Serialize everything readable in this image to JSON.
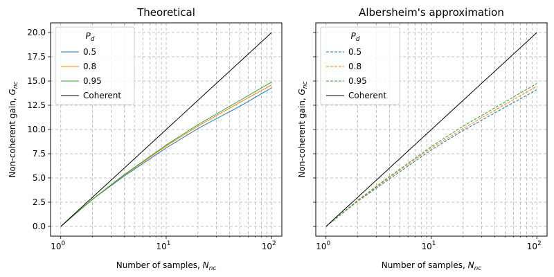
{
  "figure_title": "",
  "chart_data": [
    {
      "type": "line",
      "title": "Theoretical",
      "xlabel": "Number of samples, N_nc",
      "ylabel": "Non-coherent gain, G_nc",
      "xscale": "log",
      "xlim": [
        0.8,
        125
      ],
      "ylim": [
        -1.0,
        21.0
      ],
      "x_tick_labels": [
        "10^0",
        "10^1",
        "10^2"
      ],
      "y_ticks": [
        "0.0",
        "2.5",
        "5.0",
        "7.5",
        "10.0",
        "12.5",
        "15.0",
        "17.5",
        "20.0"
      ],
      "grid": true,
      "legend": {
        "title": "P_d",
        "position": "upper left",
        "entries": [
          "0.5",
          "0.8",
          "0.95",
          "Coherent"
        ]
      },
      "x": [
        1,
        2,
        4,
        10,
        20,
        50,
        100
      ],
      "series": [
        {
          "name": "0.5",
          "color": "#1f77b4",
          "dash": "solid",
          "values": [
            0,
            2.8,
            5.2,
            8.1,
            10.1,
            12.4,
            14.3
          ]
        },
        {
          "name": "0.8",
          "color": "#ff7f0e",
          "dash": "solid",
          "values": [
            0,
            2.8,
            5.3,
            8.3,
            10.35,
            12.8,
            14.6
          ]
        },
        {
          "name": "0.95",
          "color": "#2ca02c",
          "dash": "solid",
          "values": [
            0,
            2.8,
            5.35,
            8.4,
            10.5,
            13.0,
            14.9
          ]
        },
        {
          "name": "Coherent",
          "color": "#000000",
          "dash": "solid",
          "values": [
            0,
            3.01,
            6.02,
            10.0,
            13.01,
            16.99,
            20.0
          ]
        }
      ]
    },
    {
      "type": "line",
      "title": "Albersheim's approximation",
      "xlabel": "Number of samples, N_nc",
      "ylabel": "Non-coherent gain, G_nc",
      "xscale": "log",
      "xlim": [
        0.8,
        125
      ],
      "ylim": [
        -1.0,
        21.0
      ],
      "x_tick_labels": [
        "10^0",
        "10^1",
        "10^2"
      ],
      "y_ticks": [],
      "grid": true,
      "legend": {
        "title": "P_d",
        "position": "upper left",
        "entries": [
          "0.5",
          "0.8",
          "0.95",
          "Coherent"
        ]
      },
      "x": [
        1,
        2,
        4,
        10,
        20,
        50,
        100
      ],
      "series": [
        {
          "name": "0.5",
          "color": "#1f77b4",
          "dash": "dashed",
          "values": [
            0,
            2.6,
            4.9,
            7.9,
            9.9,
            12.3,
            14.1
          ]
        },
        {
          "name": "0.8",
          "color": "#ff7f0e",
          "dash": "dashed",
          "values": [
            0,
            2.65,
            5.05,
            8.1,
            10.1,
            12.6,
            14.45
          ]
        },
        {
          "name": "0.95",
          "color": "#2ca02c",
          "dash": "dashed",
          "values": [
            0,
            2.7,
            5.15,
            8.25,
            10.35,
            12.85,
            14.75
          ]
        },
        {
          "name": "Coherent",
          "color": "#000000",
          "dash": "solid",
          "values": [
            0,
            3.01,
            6.02,
            10.0,
            13.01,
            16.99,
            20.0
          ]
        }
      ]
    }
  ]
}
